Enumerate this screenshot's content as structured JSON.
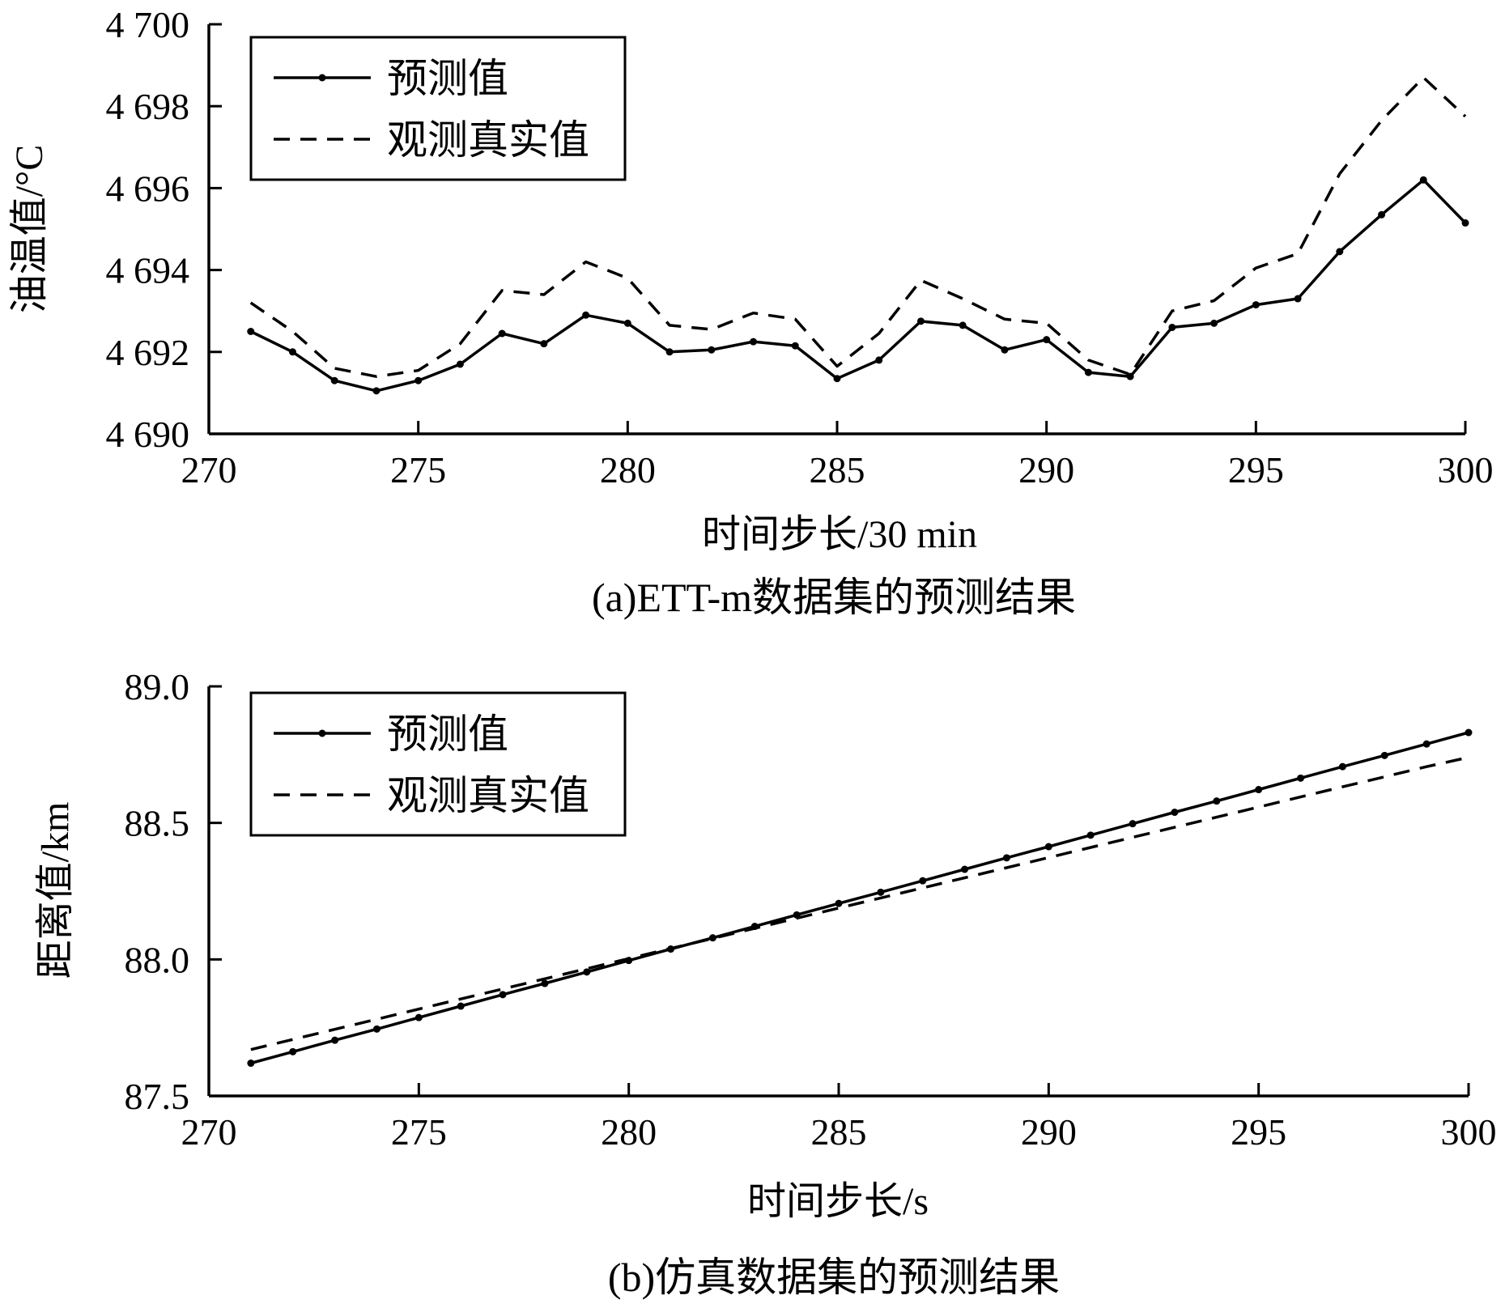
{
  "chart_data": [
    {
      "type": "line",
      "caption": "(a)ETT-m数据集的预测结果",
      "xlabel": "时间步长/30 min",
      "ylabel": "油温值/°C",
      "xlim": [
        270,
        300
      ],
      "ylim": [
        4690,
        4700
      ],
      "xticks": [
        270,
        275,
        280,
        285,
        290,
        295,
        300
      ],
      "xtick_labels": [
        "270",
        "275",
        "280",
        "285",
        "290",
        "295",
        "300"
      ],
      "yticks": [
        4690,
        4692,
        4694,
        4696,
        4698,
        4700
      ],
      "ytick_labels": [
        "4 690",
        "4 692",
        "4 694",
        "4 696",
        "4 698",
        "4 700"
      ],
      "grid": false,
      "legend": "top-left",
      "x": [
        271,
        272,
        273,
        274,
        275,
        276,
        277,
        278,
        279,
        280,
        281,
        282,
        283,
        284,
        285,
        286,
        287,
        288,
        289,
        290,
        291,
        292,
        293,
        294,
        295,
        296,
        297,
        298,
        299,
        300
      ],
      "series": [
        {
          "name": "预测值",
          "style": "solid-marker",
          "values": [
            4692.5,
            4692.0,
            4691.3,
            4691.05,
            4691.3,
            4691.7,
            4692.45,
            4692.2,
            4692.9,
            4692.7,
            4692.0,
            4692.05,
            4692.25,
            4692.15,
            4691.35,
            4691.8,
            4692.75,
            4692.65,
            4692.05,
            4692.3,
            4691.5,
            4691.4,
            4692.6,
            4692.7,
            4693.15,
            4693.3,
            4694.45,
            4695.35,
            4696.2,
            4695.15
          ]
        },
        {
          "name": "观测真实值",
          "style": "dashed",
          "values": [
            4693.2,
            4692.5,
            4691.6,
            4691.4,
            4691.55,
            4692.2,
            4693.5,
            4693.4,
            4694.2,
            4693.8,
            4692.65,
            4692.55,
            4692.95,
            4692.8,
            4691.65,
            4692.45,
            4693.75,
            4693.3,
            4692.8,
            4692.7,
            4691.8,
            4691.45,
            4693.0,
            4693.25,
            4694.05,
            4694.4,
            4696.35,
            4697.65,
            4698.7,
            4697.75
          ]
        }
      ]
    },
    {
      "type": "line",
      "caption": "(b)仿真数据集的预测结果",
      "xlabel": "时间步长/s",
      "ylabel": "距离值/km",
      "xlim": [
        270,
        300
      ],
      "ylim": [
        87.5,
        89.0
      ],
      "xticks": [
        270,
        275,
        280,
        285,
        290,
        295,
        300
      ],
      "xtick_labels": [
        "270",
        "275",
        "280",
        "285",
        "290",
        "295",
        "300"
      ],
      "yticks": [
        87.5,
        88.0,
        88.5,
        89.0
      ],
      "ytick_labels": [
        "87.5",
        "88.0",
        "88.5",
        "89.0"
      ],
      "grid": false,
      "legend": "top-left",
      "x": [
        271,
        272,
        273,
        274,
        275,
        276,
        277,
        278,
        279,
        280,
        281,
        282,
        283,
        284,
        285,
        286,
        287,
        288,
        289,
        290,
        291,
        292,
        293,
        294,
        295,
        296,
        297,
        298,
        299,
        300
      ],
      "series": [
        {
          "name": "预测值",
          "style": "solid-marker",
          "values": [
            87.62,
            87.662,
            87.704,
            87.745,
            87.787,
            87.829,
            87.871,
            87.912,
            87.954,
            87.996,
            88.038,
            88.079,
            88.121,
            88.163,
            88.205,
            88.246,
            88.288,
            88.33,
            88.372,
            88.413,
            88.455,
            88.497,
            88.539,
            88.58,
            88.622,
            88.664,
            88.706,
            88.747,
            88.789,
            88.831
          ]
        },
        {
          "name": "观测真实值",
          "style": "dashed",
          "values": [
            87.67,
            87.707,
            87.744,
            87.781,
            87.818,
            87.855,
            87.892,
            87.929,
            87.966,
            88.003,
            88.04,
            88.077,
            88.114,
            88.151,
            88.188,
            88.225,
            88.262,
            88.299,
            88.336,
            88.373,
            88.41,
            88.447,
            88.484,
            88.521,
            88.558,
            88.595,
            88.632,
            88.669,
            88.706,
            88.74
          ]
        }
      ]
    }
  ]
}
